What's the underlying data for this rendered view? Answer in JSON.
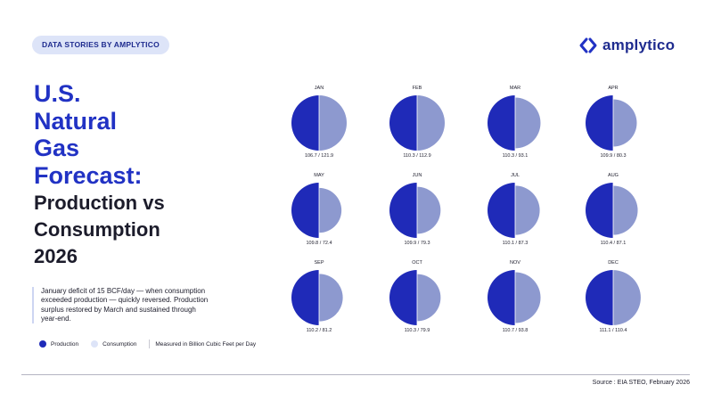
{
  "header": {
    "badge": "DATA STORIES  BY AMPLYTICO",
    "logo_text": "amplytico"
  },
  "title": {
    "line1": "U.S.",
    "line2": "Natural",
    "line3": "Gas",
    "line4": "Forecast:",
    "line5": "Production vs",
    "line6": "Consumption",
    "line7": "2026"
  },
  "summary": "January deficit of 15 BCF/day — when consumption exceeded production — quickly reversed. Production surplus restored by March and sustained through year-end.",
  "legend": {
    "production": "Production",
    "consumption": "Consumption",
    "unit_note": "Measured in Billion Cubic Feet per Day"
  },
  "source": "Source : EIA STEO, February 2026",
  "colors": {
    "production": "#1f2ab8",
    "consumption": "#8d99cf",
    "accent": "#2132c4"
  },
  "chart_data": {
    "type": "pie",
    "unit": "Billion Cubic Feet per Day",
    "series_names": [
      "Production",
      "Consumption"
    ],
    "months": [
      {
        "month": "JAN",
        "production": 106.7,
        "consumption": 121.9,
        "label": "106.7 / 121.9"
      },
      {
        "month": "FEB",
        "production": 110.3,
        "consumption": 112.9,
        "label": "110.3 / 112.9"
      },
      {
        "month": "MAR",
        "production": 110.3,
        "consumption": 93.1,
        "label": "110.3 / 93.1"
      },
      {
        "month": "APR",
        "production": 109.9,
        "consumption": 80.3,
        "label": "109.9 / 80.3"
      },
      {
        "month": "MAY",
        "production": 109.8,
        "consumption": 72.4,
        "label": "109.8 / 72.4"
      },
      {
        "month": "JUN",
        "production": 109.9,
        "consumption": 79.3,
        "label": "109.9 / 79.3"
      },
      {
        "month": "JUL",
        "production": 110.1,
        "consumption": 87.3,
        "label": "110.1 / 87.3"
      },
      {
        "month": "AUG",
        "production": 110.4,
        "consumption": 87.1,
        "label": "110.4 / 87.1"
      },
      {
        "month": "SEP",
        "production": 110.2,
        "consumption": 81.2,
        "label": "110.2 / 81.2"
      },
      {
        "month": "OCT",
        "production": 110.3,
        "consumption": 79.9,
        "label": "110.3 / 79.9"
      },
      {
        "month": "NOV",
        "production": 110.7,
        "consumption": 93.8,
        "label": "110.7 / 93.8"
      },
      {
        "month": "DEC",
        "production": 111.1,
        "consumption": 110.4,
        "label": "111.1 / 110.4"
      }
    ]
  }
}
